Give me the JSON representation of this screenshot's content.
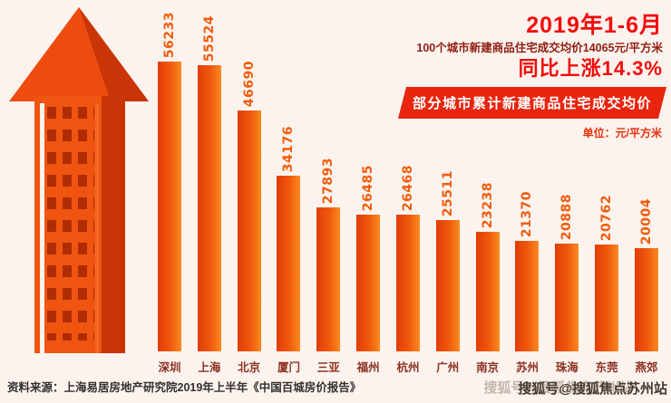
{
  "header": {
    "period": "2019年1-6月",
    "subtitle": "100个城市新建商品住宅成交均价14065元/平方米",
    "yoy": "同比上涨14.3%"
  },
  "chart_data": {
    "type": "bar",
    "title": "部分城市累计新建商品住宅成交均价",
    "unit_label": "单位：元/平方米",
    "categories": [
      "深圳",
      "上海",
      "北京",
      "厦门",
      "三亚",
      "福州",
      "杭州",
      "广州",
      "南京",
      "苏州",
      "珠海",
      "东莞",
      "燕郊"
    ],
    "values": [
      56233,
      55524,
      46690,
      34176,
      27893,
      26485,
      26468,
      25511,
      23238,
      21370,
      20888,
      20762,
      20004
    ],
    "ylim": [
      0,
      56233
    ],
    "grid": false,
    "legend_position": "none",
    "bar_gradient": [
      "#e23c06",
      "#fb8a1f"
    ],
    "value_label_color": "#f15c0c",
    "category_label_color": "#8c3122"
  },
  "illustration": {
    "name": "building-up-arrow",
    "main_color": "#ee4c0f",
    "shade_color": "#c93507",
    "window_color": "#b02c05"
  },
  "footer": {
    "source": "资料来源：上海易居房地产研究院2019年上半年《中国百城房价报告》",
    "watermark": "搜狐号@搜狐焦点苏州站"
  },
  "colors": {
    "background": "#fdf3ee",
    "headline_red": "#f40b0b",
    "subtitle_dark_red": "#8f1d10",
    "banner_bg": "#e8250f",
    "banner_text": "#ffffff"
  }
}
